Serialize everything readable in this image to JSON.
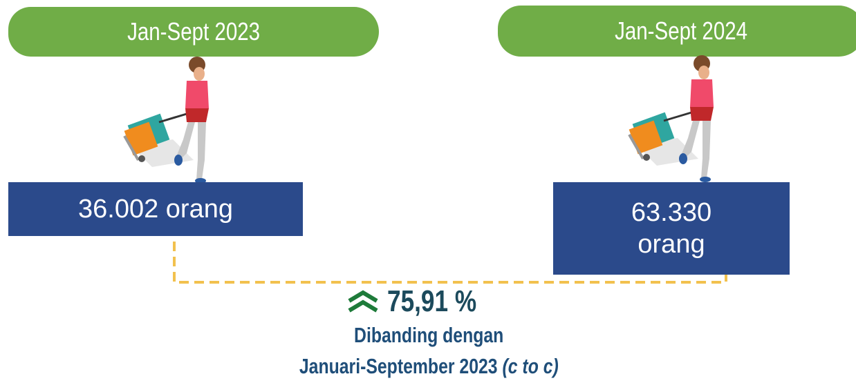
{
  "left": {
    "period": "Jan-Sept 2023",
    "value": "36.002 orang"
  },
  "right": {
    "period": "Jan-Sept 2024",
    "value": "63.330 orang"
  },
  "change": "75,91 %",
  "note": {
    "line1": "Dibanding dengan",
    "line2": "Januari-September 2023",
    "line2_italic": "(c to c)"
  }
}
